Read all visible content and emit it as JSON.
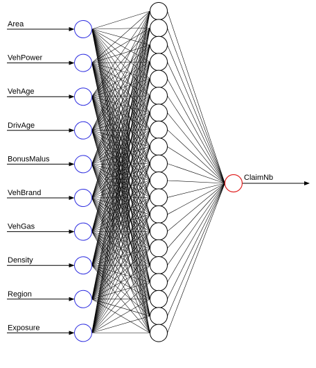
{
  "network": {
    "inputs": [
      "Area",
      "VehPower",
      "VehAge",
      "DrivAge",
      "BonusMalus",
      "VehBrand",
      "VehGas",
      "Density",
      "Region",
      "Exposure"
    ],
    "hidden_count": 20,
    "output": "ClaimNb"
  },
  "colors": {
    "input_node": "#2d2de0",
    "hidden_node": "#000000",
    "output_node": "#e02020",
    "edge": "#000000"
  }
}
